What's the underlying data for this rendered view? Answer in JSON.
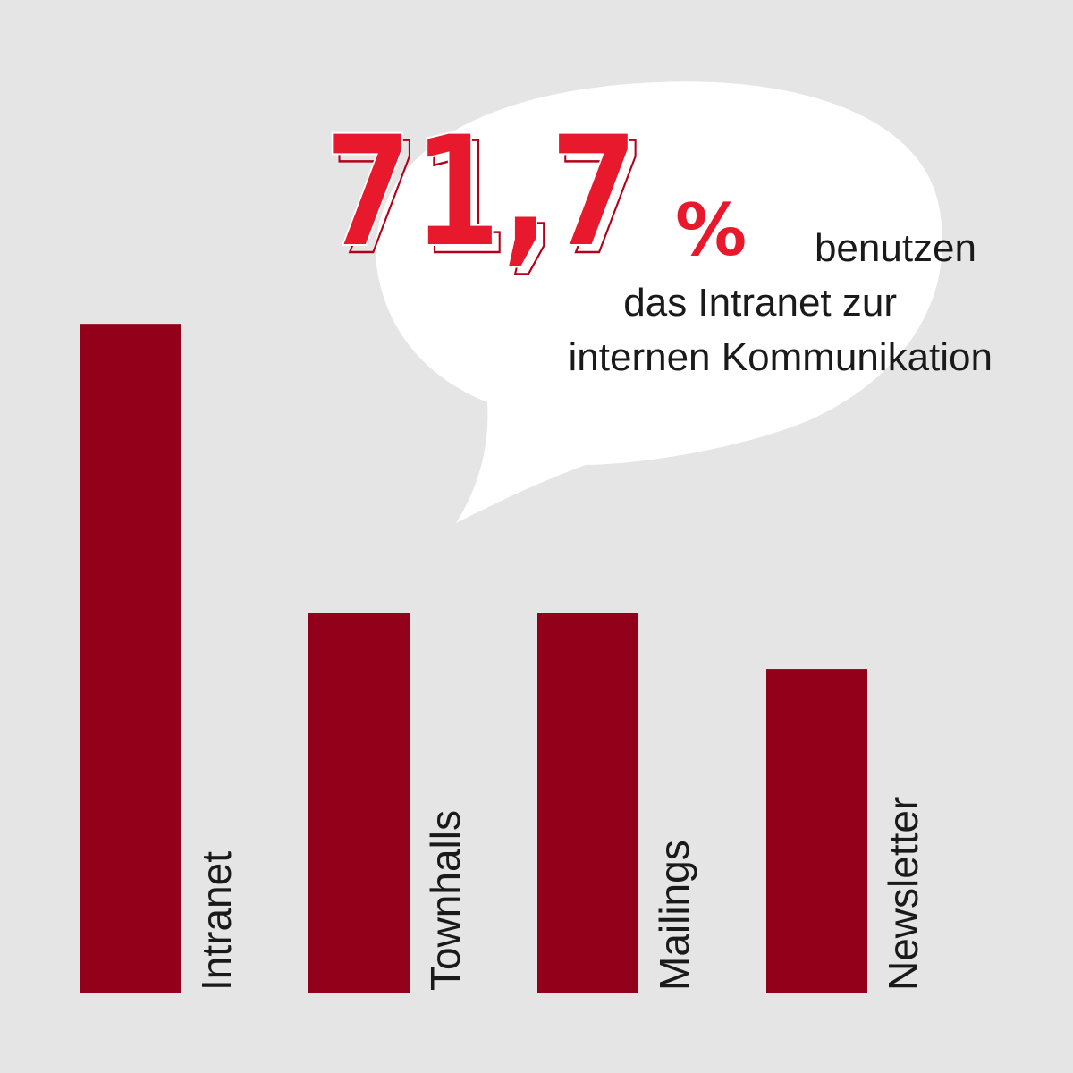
{
  "colors": {
    "background": "#e5e5e5",
    "bar": "#93001a",
    "accent": "#e8192c",
    "bubble": "#ffffff",
    "text": "#1a1a1a"
  },
  "callout": {
    "number": "71,7",
    "percent": "%",
    "line1": "benutzen",
    "line2": "das Intranet zur",
    "line3": "internen Kommunikation"
  },
  "chart_data": {
    "type": "bar",
    "categories": [
      "Intranet",
      "Townhalls",
      "Mailings",
      "Newsletter"
    ],
    "values": [
      71.7,
      40.7,
      40.7,
      34.7
    ],
    "ylim": [
      0,
      100
    ],
    "grid": false,
    "axes_visible": false,
    "orientation": "vertical",
    "category_labels": "rotated-vertical"
  }
}
